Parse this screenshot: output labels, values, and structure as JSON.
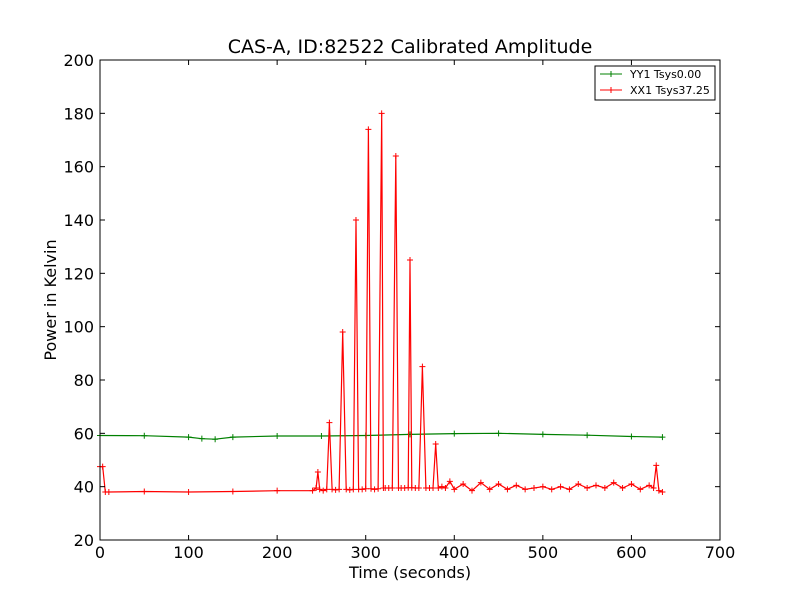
{
  "chart_data": {
    "type": "line",
    "title": "CAS-A, ID:82522 Calibrated Amplitude",
    "xlabel": "Time (seconds)",
    "ylabel": "Power in Kelvin",
    "xlim": [
      0,
      700
    ],
    "ylim": [
      20,
      200
    ],
    "xticks": [
      0,
      100,
      200,
      300,
      400,
      500,
      600,
      700
    ],
    "yticks": [
      20,
      40,
      60,
      80,
      100,
      120,
      140,
      160,
      180,
      200
    ],
    "grid": false,
    "legend_position": "top-right",
    "colors": {
      "yy1": "#008000",
      "xx1": "#ff0000",
      "frame": "#000000"
    },
    "series": [
      {
        "name": "YY1 Tsys0.00",
        "color": "#008000",
        "marker": "plus",
        "x": [
          0,
          50,
          100,
          115,
          130,
          150,
          200,
          250,
          300,
          350,
          400,
          450,
          500,
          550,
          600,
          635
        ],
        "y": [
          59.2,
          59.1,
          58.6,
          58.0,
          57.8,
          58.6,
          59.0,
          59.0,
          59.2,
          59.6,
          59.9,
          60.0,
          59.6,
          59.3,
          58.8,
          58.6
        ]
      },
      {
        "name": "XX1 Tsys37.25",
        "color": "#ff0000",
        "marker": "plus",
        "x": [
          0,
          3,
          6,
          10,
          50,
          100,
          150,
          200,
          240,
          244,
          246,
          248,
          252,
          256,
          259,
          262,
          266,
          270,
          274,
          278,
          282,
          286,
          289,
          292,
          296,
          300,
          303,
          306,
          310,
          314,
          318,
          320,
          322,
          326,
          330,
          334,
          337,
          340,
          344,
          348,
          350,
          352,
          356,
          360,
          364,
          368,
          372,
          376,
          379,
          382,
          386,
          390,
          395,
          400,
          410,
          420,
          430,
          440,
          450,
          460,
          470,
          480,
          490,
          500,
          510,
          520,
          530,
          540,
          550,
          560,
          570,
          580,
          590,
          600,
          610,
          620,
          625,
          628,
          631,
          635
        ],
        "y": [
          47.5,
          47.5,
          38.0,
          38.0,
          38.2,
          38.0,
          38.2,
          38.5,
          38.5,
          39.5,
          45.5,
          39.0,
          38.5,
          39.0,
          64.0,
          39.0,
          38.8,
          39.0,
          98.0,
          39.0,
          38.8,
          39.0,
          140.0,
          39.0,
          39.0,
          39.2,
          174.0,
          39.2,
          39.0,
          39.2,
          180.0,
          39.5,
          39.5,
          39.5,
          39.5,
          164.0,
          39.5,
          39.5,
          39.5,
          39.6,
          125.0,
          39.6,
          39.5,
          39.5,
          85.0,
          39.5,
          39.5,
          39.5,
          56.0,
          39.5,
          40.0,
          39.5,
          42.0,
          39.0,
          41.0,
          38.5,
          41.5,
          39.0,
          41.0,
          39.0,
          40.5,
          39.0,
          39.5,
          40.0,
          39.0,
          40.0,
          39.0,
          41.0,
          39.5,
          40.5,
          39.5,
          41.5,
          39.5,
          41.0,
          39.0,
          40.5,
          39.5,
          48.0,
          38.5,
          38.0
        ]
      }
    ]
  }
}
